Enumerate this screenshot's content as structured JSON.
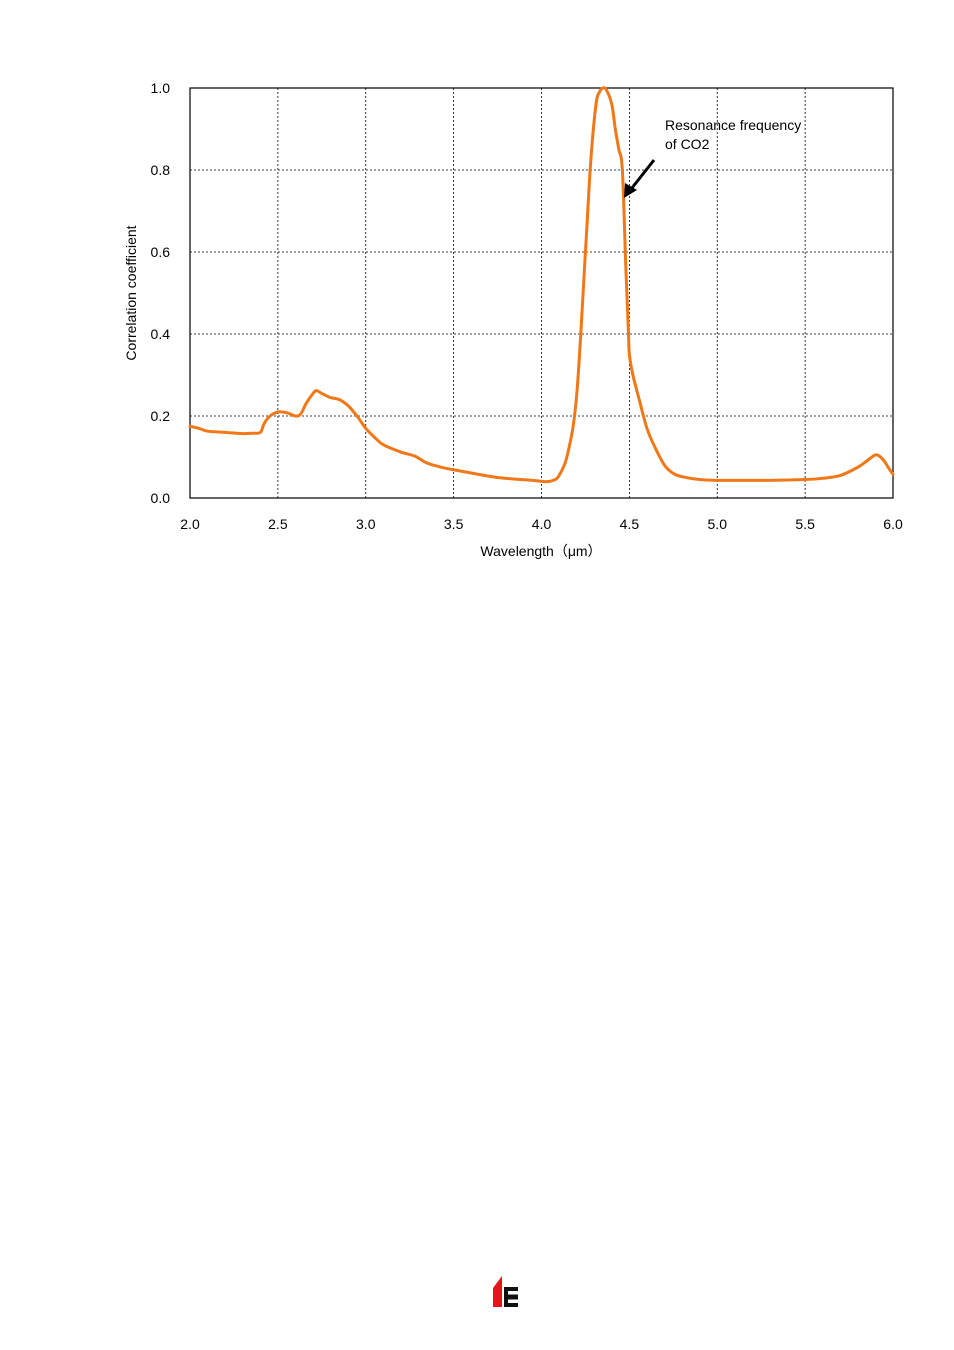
{
  "chart_data": {
    "type": "line",
    "title": "",
    "xlabel": "Wavelength（μm）",
    "ylabel": "Correlation coefficient",
    "xlim": [
      2.0,
      6.0
    ],
    "ylim": [
      0.0,
      1.0
    ],
    "xticks": [
      "2.0",
      "2.5",
      "3.0",
      "3.5",
      "4.0",
      "4.5",
      "5.0",
      "5.5",
      "6.0"
    ],
    "yticks": [
      "0.0",
      "0.2",
      "0.4",
      "0.6",
      "0.8",
      "1.0"
    ],
    "grid": true,
    "legend": "none",
    "line_color": "#F07818",
    "annotation": {
      "lines": [
        "Resonance frequency",
        "of CO2"
      ],
      "points_to": [
        4.49,
        0.73
      ],
      "text_anchor": [
        4.7,
        0.87
      ]
    },
    "series": [
      {
        "x": [
          2.0,
          2.05,
          2.1,
          2.2,
          2.3,
          2.35,
          2.4,
          2.42,
          2.45,
          2.5,
          2.55,
          2.6,
          2.63,
          2.66,
          2.7,
          2.72,
          2.75,
          2.8,
          2.85,
          2.9,
          2.95,
          3.0,
          3.05,
          3.1,
          3.2,
          3.28,
          3.35,
          3.45,
          3.55,
          3.65,
          3.75,
          3.85,
          3.95,
          4.02,
          4.06,
          4.1,
          4.15,
          4.2,
          4.25,
          4.28,
          4.31,
          4.33,
          4.35,
          4.37,
          4.4,
          4.42,
          4.44,
          4.46,
          4.48,
          4.495,
          4.5,
          4.52,
          4.55,
          4.6,
          4.65,
          4.7,
          4.75,
          4.8,
          4.9,
          5.0,
          5.1,
          5.3,
          5.5,
          5.6,
          5.7,
          5.8,
          5.85,
          5.88,
          5.9,
          5.92,
          5.95,
          5.98,
          6.0
        ],
        "y": [
          0.175,
          0.17,
          0.163,
          0.16,
          0.157,
          0.158,
          0.16,
          0.18,
          0.198,
          0.21,
          0.208,
          0.2,
          0.205,
          0.23,
          0.255,
          0.262,
          0.255,
          0.245,
          0.24,
          0.225,
          0.2,
          0.17,
          0.148,
          0.13,
          0.112,
          0.102,
          0.085,
          0.073,
          0.065,
          0.057,
          0.05,
          0.046,
          0.043,
          0.04,
          0.042,
          0.055,
          0.11,
          0.25,
          0.6,
          0.82,
          0.96,
          0.99,
          1.0,
          0.995,
          0.96,
          0.9,
          0.85,
          0.8,
          0.56,
          0.4,
          0.35,
          0.3,
          0.25,
          0.17,
          0.12,
          0.08,
          0.06,
          0.052,
          0.045,
          0.043,
          0.043,
          0.043,
          0.045,
          0.048,
          0.055,
          0.075,
          0.09,
          0.1,
          0.105,
          0.103,
          0.09,
          0.07,
          0.058
        ]
      }
    ]
  }
}
